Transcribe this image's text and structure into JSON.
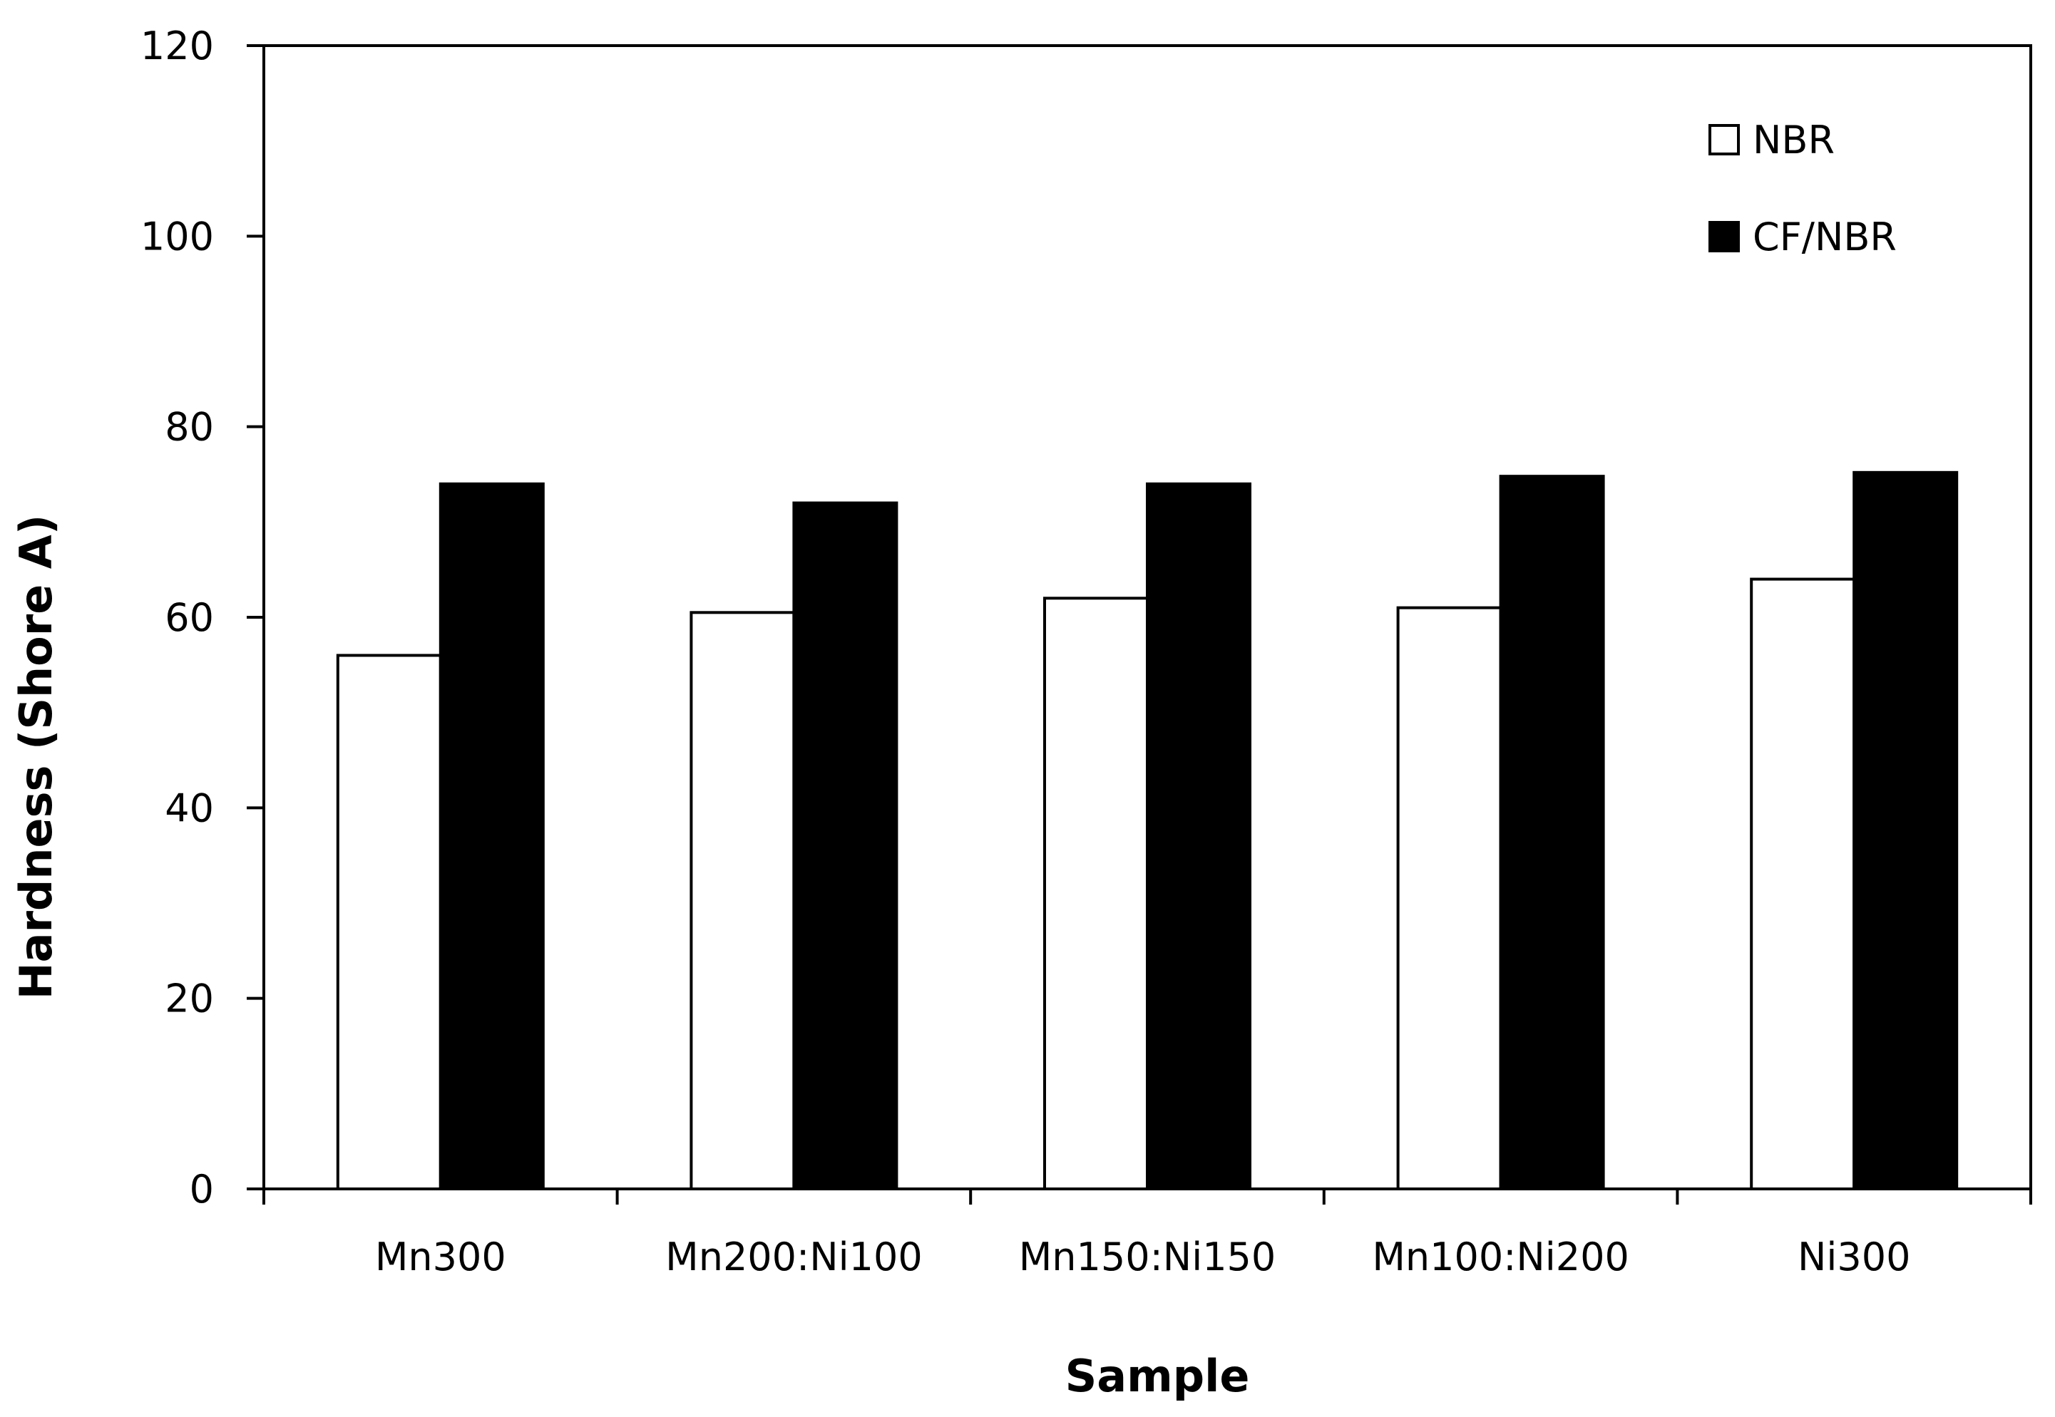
{
  "chart_data": {
    "type": "bar",
    "categories": [
      "Mn300",
      "Mn200:Ni100",
      "Mn150:Ni150",
      "Mn100:Ni200",
      "Ni300"
    ],
    "series": [
      {
        "name": "NBR",
        "values": [
          56,
          60.5,
          62,
          61,
          64
        ],
        "color": "#ffffff"
      },
      {
        "name": "CF/NBR",
        "values": [
          74,
          72,
          74,
          74.8,
          75.2
        ],
        "color": "#000000"
      }
    ],
    "xlabel": "Sample",
    "ylabel": "Hardness (Shore A)",
    "ylim": [
      0,
      120
    ],
    "yticks": [
      "0",
      "20",
      "40",
      "60",
      "80",
      "100",
      "120"
    ],
    "grid": false,
    "legend_position": "top-right"
  }
}
